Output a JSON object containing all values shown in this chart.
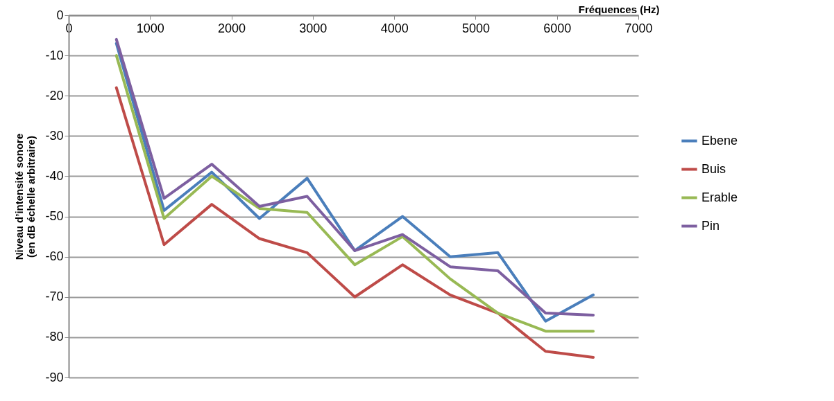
{
  "chart_data": {
    "type": "line",
    "xlabel": "Fréquences (Hz)",
    "ylabel": "Niveau d’intensité sonore (en dB échelle arbitraire)",
    "x": [
      586,
      1172,
      1758,
      2344,
      2930,
      3516,
      4102,
      4688,
      5274,
      5860,
      6446
    ],
    "series": [
      {
        "name": "Ebene",
        "color": "#4a7ebb",
        "values": [
          -7,
          -48.5,
          -39,
          -50.5,
          -40.5,
          -58.5,
          -50,
          -60,
          -59,
          -76,
          -69.5
        ]
      },
      {
        "name": "Buis",
        "color": "#be4b48",
        "values": [
          -18,
          -57,
          -47,
          -55.5,
          -59,
          -70,
          -62,
          -69.5,
          -74,
          -83.5,
          -85
        ]
      },
      {
        "name": "Erable",
        "color": "#98b954",
        "values": [
          -10,
          -50.5,
          -40,
          -48,
          -49,
          -62,
          -55,
          -65.5,
          -74,
          -78.5,
          -78.5
        ]
      },
      {
        "name": "Pin",
        "color": "#7d5fa0",
        "values": [
          -6,
          -45.5,
          -37,
          -47.5,
          -45,
          -58.5,
          -54.5,
          -62.5,
          -63.5,
          -74,
          -74.5
        ]
      }
    ],
    "xlim": [
      0,
      7000
    ],
    "xticks": [
      0,
      1000,
      2000,
      3000,
      4000,
      5000,
      6000,
      7000
    ],
    "ylim": [
      -90,
      0
    ],
    "yticks": [
      0,
      -10,
      -20,
      -30,
      -40,
      -50,
      -60,
      -70,
      -80,
      -90
    ],
    "grid": "y",
    "legend": "right",
    "marker": "none",
    "line_style": "solid"
  }
}
